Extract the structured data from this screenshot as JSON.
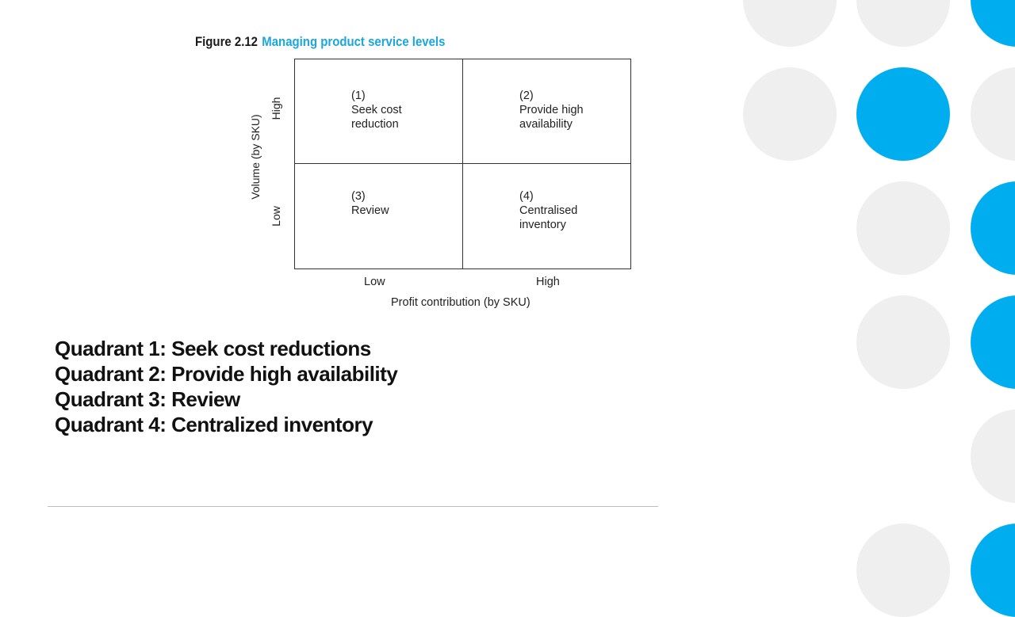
{
  "figure": {
    "number": "Figure 2.12",
    "title": "Managing product service levels"
  },
  "matrix": {
    "y_axis_label": "Volume (by SKU)",
    "y_ticks": [
      "High",
      "Low"
    ],
    "x_axis_label": "Profit contribution (by SKU)",
    "x_ticks": [
      "Low",
      "High"
    ],
    "quadrants": [
      {
        "num": "(1)",
        "line1": "Seek cost",
        "line2": "reduction"
      },
      {
        "num": "(2)",
        "line1": "Provide high",
        "line2": "availability"
      },
      {
        "num": "(3)",
        "line1": "Review",
        "line2": ""
      },
      {
        "num": "(4)",
        "line1": "Centralised",
        "line2": "inventory"
      }
    ]
  },
  "summary": [
    "Quadrant 1: Seek cost reductions",
    "Quadrant 2: Provide high availability",
    "Quadrant 3: Review",
    "Quadrant 4: Centralized inventory"
  ],
  "colors": {
    "accent": "#00aeef",
    "caption_title": "#1aa6de",
    "decor_grey": "#efefef"
  }
}
